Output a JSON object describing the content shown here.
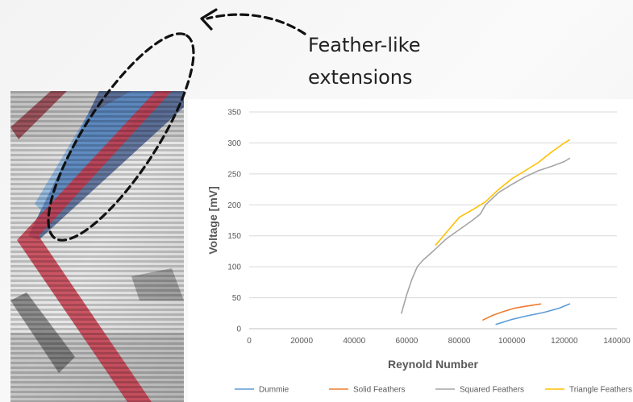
{
  "callout": {
    "text": "Feather-like\nextensions"
  },
  "chart_data": {
    "type": "line",
    "xlabel": "Reynold Number",
    "ylabel": "Voltage [mV]",
    "xlim": [
      0,
      140000
    ],
    "ylim": [
      0,
      350
    ],
    "xticks": [
      0,
      20000,
      40000,
      60000,
      80000,
      100000,
      120000,
      140000
    ],
    "yticks": [
      0,
      50,
      100,
      150,
      200,
      250,
      300,
      350
    ],
    "grid": true,
    "legend_position": "bottom",
    "series": [
      {
        "name": "Dummie",
        "color": "#5B9BD5",
        "x": [
          94000,
          100000,
          106000,
          112000,
          118000,
          122000
        ],
        "y": [
          7,
          15,
          21,
          26,
          33,
          40
        ]
      },
      {
        "name": "Solid Feathers",
        "color": "#ED7D31",
        "x": [
          89000,
          93000,
          97000,
          101000,
          105000,
          111000
        ],
        "y": [
          14,
          22,
          28,
          33,
          36,
          40
        ]
      },
      {
        "name": "Squared Feathers",
        "color": "#A5A5A5",
        "x": [
          58000,
          60000,
          62000,
          64000,
          66000,
          70000,
          75000,
          80000,
          85000,
          88000,
          90000,
          95000,
          100000,
          105000,
          110000,
          115000,
          120000,
          122000
        ],
        "y": [
          25,
          55,
          80,
          100,
          110,
          125,
          145,
          160,
          175,
          185,
          200,
          220,
          233,
          245,
          255,
          262,
          270,
          275
        ]
      },
      {
        "name": "Triangle Feathers",
        "color": "#FFC000",
        "x": [
          71000,
          75000,
          80000,
          85000,
          90000,
          95000,
          100000,
          105000,
          110000,
          115000,
          120000,
          122000
        ],
        "y": [
          135,
          155,
          180,
          192,
          205,
          225,
          242,
          255,
          268,
          285,
          300,
          305
        ]
      }
    ]
  }
}
